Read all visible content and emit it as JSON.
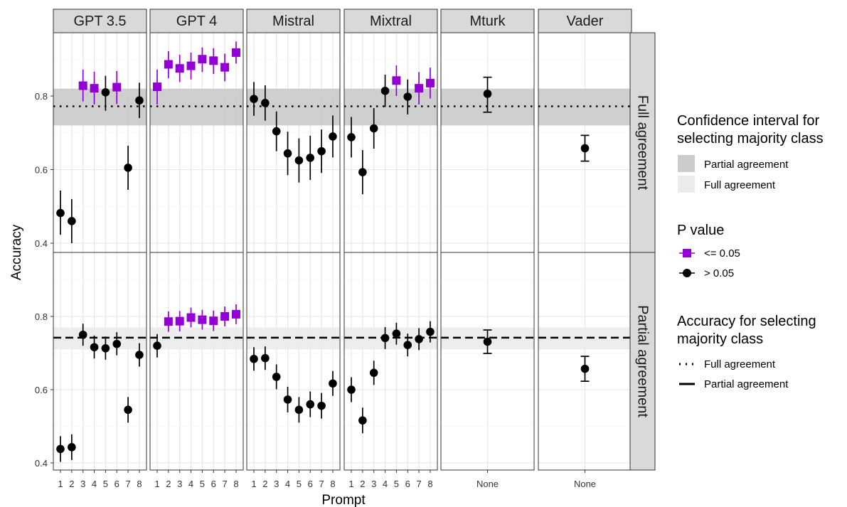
{
  "chart_data": {
    "type": "scatter",
    "xlabel": "Prompt",
    "ylabel": "Accuracy",
    "ylim": [
      0.4,
      0.97
    ],
    "y_ticks": [
      "0.4",
      "0.6",
      "0.8"
    ],
    "columns": [
      "GPT 3.5",
      "GPT 4",
      "Mistral",
      "Mixtral",
      "Mturk",
      "Vader"
    ],
    "rows": [
      "Full agreement",
      "Partial agreement"
    ],
    "x_ticks_prompts": [
      "1",
      "2",
      "3",
      "4",
      "5",
      "6",
      "7",
      "8"
    ],
    "x_tick_none": "None",
    "colors": {
      "sig": "#9400D3",
      "nonsig": "#000000",
      "band_partial": "#cccccc",
      "band_full": "#ebebeb"
    },
    "reference": {
      "Full agreement": {
        "line": 0.772,
        "band": [
          0.72,
          0.82
        ],
        "band_class": "Partial agreement",
        "linetype": "dotted"
      },
      "Partial agreement": {
        "line": 0.742,
        "band": [
          0.71,
          0.77
        ],
        "band_class": "Full agreement",
        "linetype": "dashed"
      }
    },
    "panels": [
      {
        "row": "Full agreement",
        "col": "GPT 3.5",
        "points": [
          {
            "x": "1",
            "y": 0.482,
            "lo": 0.423,
            "hi": 0.543,
            "sig": false
          },
          {
            "x": "2",
            "y": 0.46,
            "lo": 0.4,
            "hi": 0.52,
            "sig": false
          },
          {
            "x": "3",
            "y": 0.828,
            "lo": 0.785,
            "hi": 0.872,
            "sig": true
          },
          {
            "x": "4",
            "y": 0.821,
            "lo": 0.777,
            "hi": 0.866,
            "sig": true
          },
          {
            "x": "5",
            "y": 0.81,
            "lo": 0.76,
            "hi": 0.855,
            "sig": false
          },
          {
            "x": "6",
            "y": 0.824,
            "lo": 0.778,
            "hi": 0.868,
            "sig": true
          },
          {
            "x": "7",
            "y": 0.605,
            "lo": 0.545,
            "hi": 0.665,
            "sig": false
          },
          {
            "x": "8",
            "y": 0.788,
            "lo": 0.74,
            "hi": 0.836,
            "sig": false
          }
        ]
      },
      {
        "row": "Full agreement",
        "col": "GPT 4",
        "points": [
          {
            "x": "1",
            "y": 0.825,
            "lo": 0.777,
            "hi": 0.872,
            "sig": true
          },
          {
            "x": "2",
            "y": 0.886,
            "lo": 0.848,
            "hi": 0.922,
            "sig": true
          },
          {
            "x": "3",
            "y": 0.875,
            "lo": 0.838,
            "hi": 0.912,
            "sig": true
          },
          {
            "x": "4",
            "y": 0.882,
            "lo": 0.845,
            "hi": 0.918,
            "sig": true
          },
          {
            "x": "5",
            "y": 0.9,
            "lo": 0.865,
            "hi": 0.932,
            "sig": true
          },
          {
            "x": "6",
            "y": 0.896,
            "lo": 0.86,
            "hi": 0.93,
            "sig": true
          },
          {
            "x": "7",
            "y": 0.878,
            "lo": 0.84,
            "hi": 0.915,
            "sig": true
          },
          {
            "x": "8",
            "y": 0.918,
            "lo": 0.888,
            "hi": 0.948,
            "sig": true
          }
        ]
      },
      {
        "row": "Full agreement",
        "col": "Mistral",
        "points": [
          {
            "x": "1",
            "y": 0.792,
            "lo": 0.746,
            "hi": 0.838,
            "sig": false
          },
          {
            "x": "2",
            "y": 0.781,
            "lo": 0.733,
            "hi": 0.829,
            "sig": false
          },
          {
            "x": "3",
            "y": 0.704,
            "lo": 0.65,
            "hi": 0.758,
            "sig": false
          },
          {
            "x": "4",
            "y": 0.644,
            "lo": 0.585,
            "hi": 0.703,
            "sig": false
          },
          {
            "x": "5",
            "y": 0.625,
            "lo": 0.565,
            "hi": 0.685,
            "sig": false
          },
          {
            "x": "6",
            "y": 0.632,
            "lo": 0.572,
            "hi": 0.692,
            "sig": false
          },
          {
            "x": "7",
            "y": 0.65,
            "lo": 0.591,
            "hi": 0.709,
            "sig": false
          },
          {
            "x": "8",
            "y": 0.69,
            "lo": 0.633,
            "hi": 0.747,
            "sig": false
          }
        ]
      },
      {
        "row": "Full agreement",
        "col": "Mixtral",
        "points": [
          {
            "x": "1",
            "y": 0.688,
            "lo": 0.633,
            "hi": 0.743,
            "sig": false
          },
          {
            "x": "2",
            "y": 0.593,
            "lo": 0.533,
            "hi": 0.653,
            "sig": false
          },
          {
            "x": "3",
            "y": 0.712,
            "lo": 0.657,
            "hi": 0.767,
            "sig": false
          },
          {
            "x": "4",
            "y": 0.814,
            "lo": 0.77,
            "hi": 0.858,
            "sig": false
          },
          {
            "x": "5",
            "y": 0.842,
            "lo": 0.8,
            "hi": 0.883,
            "sig": true
          },
          {
            "x": "6",
            "y": 0.798,
            "lo": 0.75,
            "hi": 0.845,
            "sig": false
          },
          {
            "x": "7",
            "y": 0.821,
            "lo": 0.777,
            "hi": 0.865,
            "sig": true
          },
          {
            "x": "8",
            "y": 0.835,
            "lo": 0.793,
            "hi": 0.877,
            "sig": true
          }
        ]
      },
      {
        "row": "Full agreement",
        "col": "Mturk",
        "points": [
          {
            "x": "None",
            "y": 0.806,
            "lo": 0.756,
            "hi": 0.851,
            "sig": false
          }
        ]
      },
      {
        "row": "Full agreement",
        "col": "Vader",
        "points": [
          {
            "x": "None",
            "y": 0.658,
            "lo": 0.623,
            "hi": 0.693,
            "sig": false
          }
        ]
      },
      {
        "row": "Partial agreement",
        "col": "GPT 3.5",
        "points": [
          {
            "x": "1",
            "y": 0.438,
            "lo": 0.403,
            "hi": 0.473,
            "sig": false
          },
          {
            "x": "2",
            "y": 0.443,
            "lo": 0.408,
            "hi": 0.478,
            "sig": false
          },
          {
            "x": "3",
            "y": 0.75,
            "lo": 0.72,
            "hi": 0.78,
            "sig": false
          },
          {
            "x": "4",
            "y": 0.716,
            "lo": 0.685,
            "hi": 0.748,
            "sig": false
          },
          {
            "x": "5",
            "y": 0.713,
            "lo": 0.682,
            "hi": 0.745,
            "sig": false
          },
          {
            "x": "6",
            "y": 0.725,
            "lo": 0.694,
            "hi": 0.757,
            "sig": false
          },
          {
            "x": "7",
            "y": 0.545,
            "lo": 0.51,
            "hi": 0.58,
            "sig": false
          },
          {
            "x": "8",
            "y": 0.695,
            "lo": 0.663,
            "hi": 0.727,
            "sig": false
          }
        ]
      },
      {
        "row": "Partial agreement",
        "col": "GPT 4",
        "points": [
          {
            "x": "1",
            "y": 0.72,
            "lo": 0.688,
            "hi": 0.752,
            "sig": false
          },
          {
            "x": "2",
            "y": 0.786,
            "lo": 0.758,
            "hi": 0.814,
            "sig": true
          },
          {
            "x": "3",
            "y": 0.787,
            "lo": 0.759,
            "hi": 0.815,
            "sig": true
          },
          {
            "x": "4",
            "y": 0.797,
            "lo": 0.77,
            "hi": 0.824,
            "sig": true
          },
          {
            "x": "5",
            "y": 0.791,
            "lo": 0.764,
            "hi": 0.818,
            "sig": true
          },
          {
            "x": "6",
            "y": 0.788,
            "lo": 0.76,
            "hi": 0.816,
            "sig": true
          },
          {
            "x": "7",
            "y": 0.8,
            "lo": 0.773,
            "hi": 0.827,
            "sig": true
          },
          {
            "x": "8",
            "y": 0.806,
            "lo": 0.779,
            "hi": 0.833,
            "sig": true
          }
        ]
      },
      {
        "row": "Partial agreement",
        "col": "Mistral",
        "points": [
          {
            "x": "1",
            "y": 0.684,
            "lo": 0.652,
            "hi": 0.716,
            "sig": false
          },
          {
            "x": "2",
            "y": 0.686,
            "lo": 0.654,
            "hi": 0.718,
            "sig": false
          },
          {
            "x": "3",
            "y": 0.635,
            "lo": 0.601,
            "hi": 0.669,
            "sig": false
          },
          {
            "x": "4",
            "y": 0.573,
            "lo": 0.538,
            "hi": 0.608,
            "sig": false
          },
          {
            "x": "5",
            "y": 0.545,
            "lo": 0.51,
            "hi": 0.58,
            "sig": false
          },
          {
            "x": "6",
            "y": 0.56,
            "lo": 0.525,
            "hi": 0.595,
            "sig": false
          },
          {
            "x": "7",
            "y": 0.556,
            "lo": 0.521,
            "hi": 0.591,
            "sig": false
          },
          {
            "x": "8",
            "y": 0.617,
            "lo": 0.583,
            "hi": 0.651,
            "sig": false
          }
        ]
      },
      {
        "row": "Partial agreement",
        "col": "Mixtral",
        "points": [
          {
            "x": "1",
            "y": 0.6,
            "lo": 0.566,
            "hi": 0.634,
            "sig": false
          },
          {
            "x": "2",
            "y": 0.516,
            "lo": 0.481,
            "hi": 0.551,
            "sig": false
          },
          {
            "x": "3",
            "y": 0.646,
            "lo": 0.613,
            "hi": 0.679,
            "sig": false
          },
          {
            "x": "4",
            "y": 0.741,
            "lo": 0.711,
            "hi": 0.771,
            "sig": false
          },
          {
            "x": "5",
            "y": 0.753,
            "lo": 0.723,
            "hi": 0.783,
            "sig": false
          },
          {
            "x": "6",
            "y": 0.722,
            "lo": 0.691,
            "hi": 0.753,
            "sig": false
          },
          {
            "x": "7",
            "y": 0.738,
            "lo": 0.708,
            "hi": 0.768,
            "sig": false
          },
          {
            "x": "8",
            "y": 0.758,
            "lo": 0.729,
            "hi": 0.787,
            "sig": false
          }
        ]
      },
      {
        "row": "Partial agreement",
        "col": "Mturk",
        "points": [
          {
            "x": "None",
            "y": 0.731,
            "lo": 0.699,
            "hi": 0.763,
            "sig": false
          }
        ]
      },
      {
        "row": "Partial agreement",
        "col": "Vader",
        "points": [
          {
            "x": "None",
            "y": 0.657,
            "lo": 0.623,
            "hi": 0.691,
            "sig": false
          }
        ]
      }
    ],
    "legend": {
      "ci": {
        "title_line1": "Confidence interval for",
        "title_line2": "selecting majority class",
        "items": [
          "Partial agreement",
          "Full agreement"
        ]
      },
      "p": {
        "title": "P value",
        "items": [
          "<= 0.05",
          "> 0.05"
        ]
      },
      "acc": {
        "title_line1": "Accuracy for selecting",
        "title_line2": "majority class",
        "items": [
          "Full agreement",
          "Partial agreement"
        ]
      }
    }
  }
}
